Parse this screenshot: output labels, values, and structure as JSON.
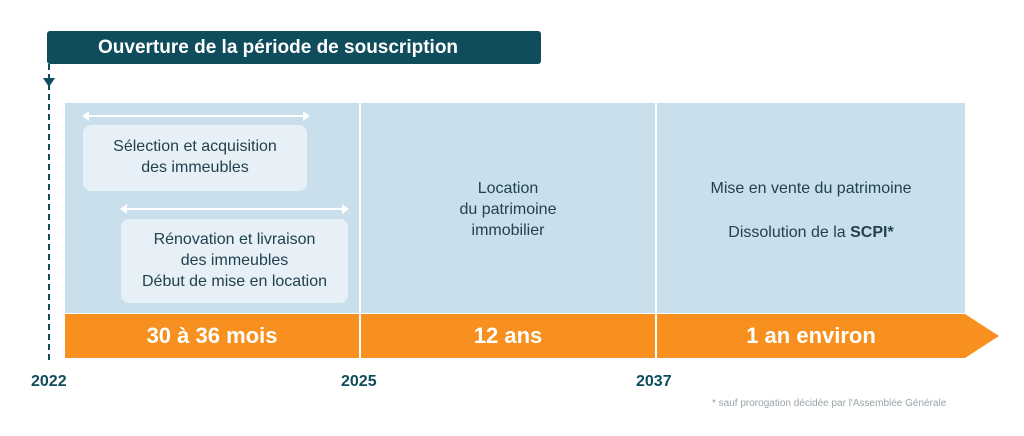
{
  "banner": {
    "label": "Ouverture de la période de souscription"
  },
  "phase1": {
    "box1": [
      "Sélection et acquisition",
      "des immeubles"
    ],
    "box2": [
      "Rénovation et livraison",
      "des immeubles",
      "Début de mise en location"
    ],
    "duration": "30 à 36 mois"
  },
  "phase2": {
    "text": [
      "Location",
      "du patrimoine",
      "immobilier"
    ],
    "duration": "12 ans"
  },
  "phase3": {
    "text1": "Mise en vente du patrimoine",
    "text2_prefix": "Dissolution de la ",
    "text2_bold": "SCPI*",
    "duration": "1 an environ"
  },
  "years": [
    "2022",
    "2025",
    "2037"
  ],
  "footnote": "* sauf prorogation décidée par l'Assemblée Générale",
  "colors": {
    "dark_teal": "#0f4c5c",
    "orange": "#f7901e",
    "panel_blue": "#c9dfec",
    "box_blue": "#e6f0f6"
  }
}
